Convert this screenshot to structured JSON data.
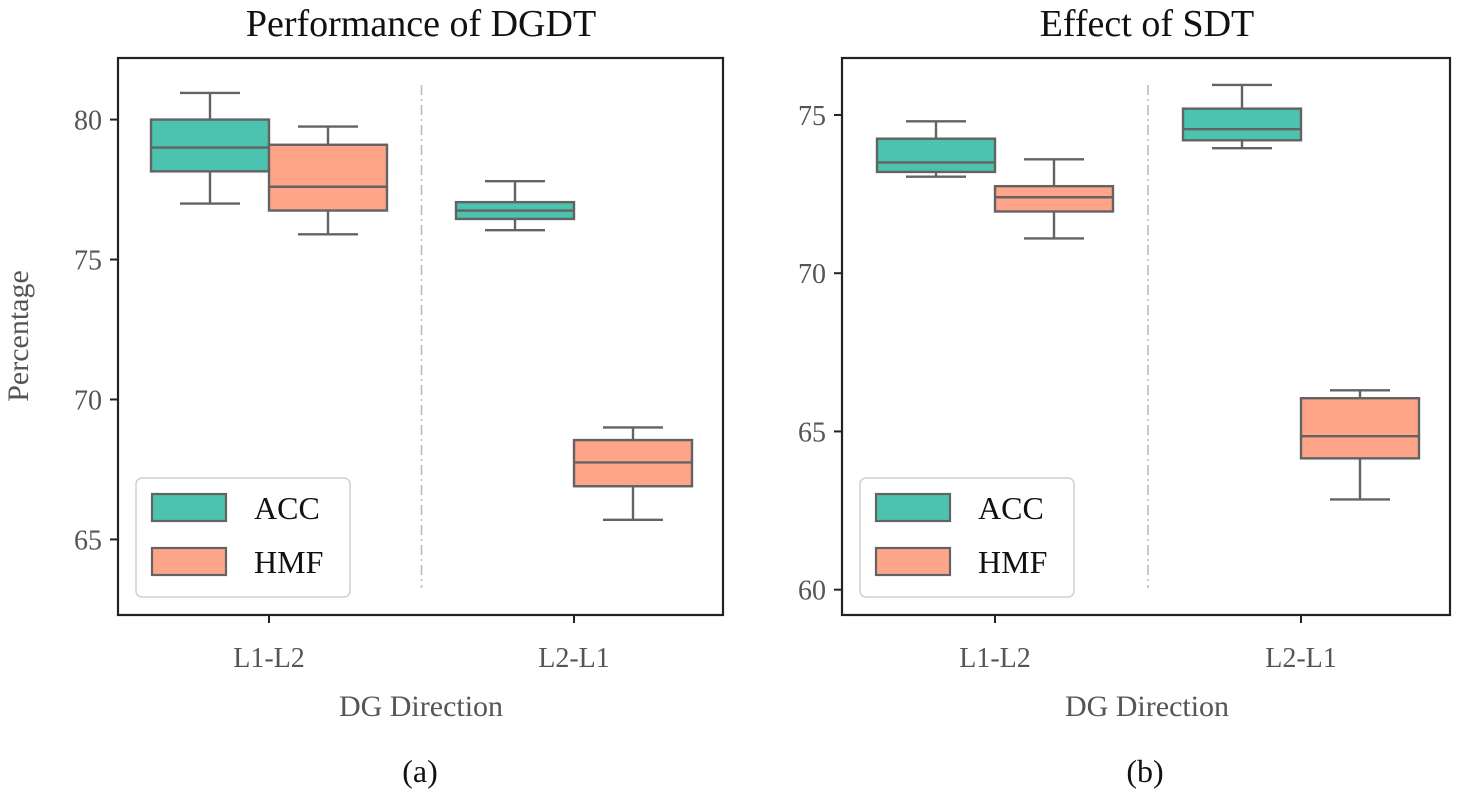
{
  "colors": {
    "acc": "#4cc3ae",
    "hmf": "#fea489",
    "edge": "#636363"
  },
  "panels": [
    {
      "label": "(a)",
      "chart_data": {
        "type": "box",
        "title": "Performance of DGDT",
        "xlabel": "DG Direction",
        "ylabel": "Percentage",
        "categories": [
          "L1-L2",
          "L2-L1"
        ],
        "ylim": [
          62.3,
          82.2
        ],
        "yticks": [
          65,
          70,
          75,
          80
        ],
        "legend": {
          "placement": "lower-left",
          "entries": [
            "ACC",
            "HMF"
          ]
        },
        "separator": "dash-dot vertical line between groups",
        "series": [
          {
            "name": "ACC",
            "boxes": [
              {
                "whisker_low": 77.0,
                "q1": 78.15,
                "median": 79.0,
                "q3": 80.0,
                "whisker_high": 80.95
              },
              {
                "whisker_low": 76.05,
                "q1": 76.45,
                "median": 76.75,
                "q3": 77.05,
                "whisker_high": 77.8
              }
            ]
          },
          {
            "name": "HMF",
            "boxes": [
              {
                "whisker_low": 75.9,
                "q1": 76.75,
                "median": 77.6,
                "q3": 79.1,
                "whisker_high": 79.75
              },
              {
                "whisker_low": 65.7,
                "q1": 66.9,
                "median": 67.75,
                "q3": 68.55,
                "whisker_high": 69.0
              }
            ]
          }
        ]
      }
    },
    {
      "label": "(b)",
      "chart_data": {
        "type": "box",
        "title": "Effect of SDT",
        "xlabel": "DG Direction",
        "ylabel": "",
        "categories": [
          "L1-L2",
          "L2-L1"
        ],
        "ylim": [
          59.2,
          76.8
        ],
        "yticks": [
          60,
          65,
          70,
          75
        ],
        "legend": {
          "placement": "lower-left",
          "entries": [
            "ACC",
            "HMF"
          ]
        },
        "separator": "dash-dot vertical line between groups",
        "series": [
          {
            "name": "ACC",
            "boxes": [
              {
                "whisker_low": 73.05,
                "q1": 73.2,
                "median": 73.5,
                "q3": 74.25,
                "whisker_high": 74.8
              },
              {
                "whisker_low": 73.95,
                "q1": 74.2,
                "median": 74.55,
                "q3": 75.2,
                "whisker_high": 75.95
              }
            ]
          },
          {
            "name": "HMF",
            "boxes": [
              {
                "whisker_low": 71.1,
                "q1": 71.95,
                "median": 72.4,
                "q3": 72.75,
                "whisker_high": 73.6
              },
              {
                "whisker_low": 62.85,
                "q1": 64.15,
                "median": 64.85,
                "q3": 66.05,
                "whisker_high": 66.3
              }
            ]
          }
        ]
      }
    }
  ]
}
